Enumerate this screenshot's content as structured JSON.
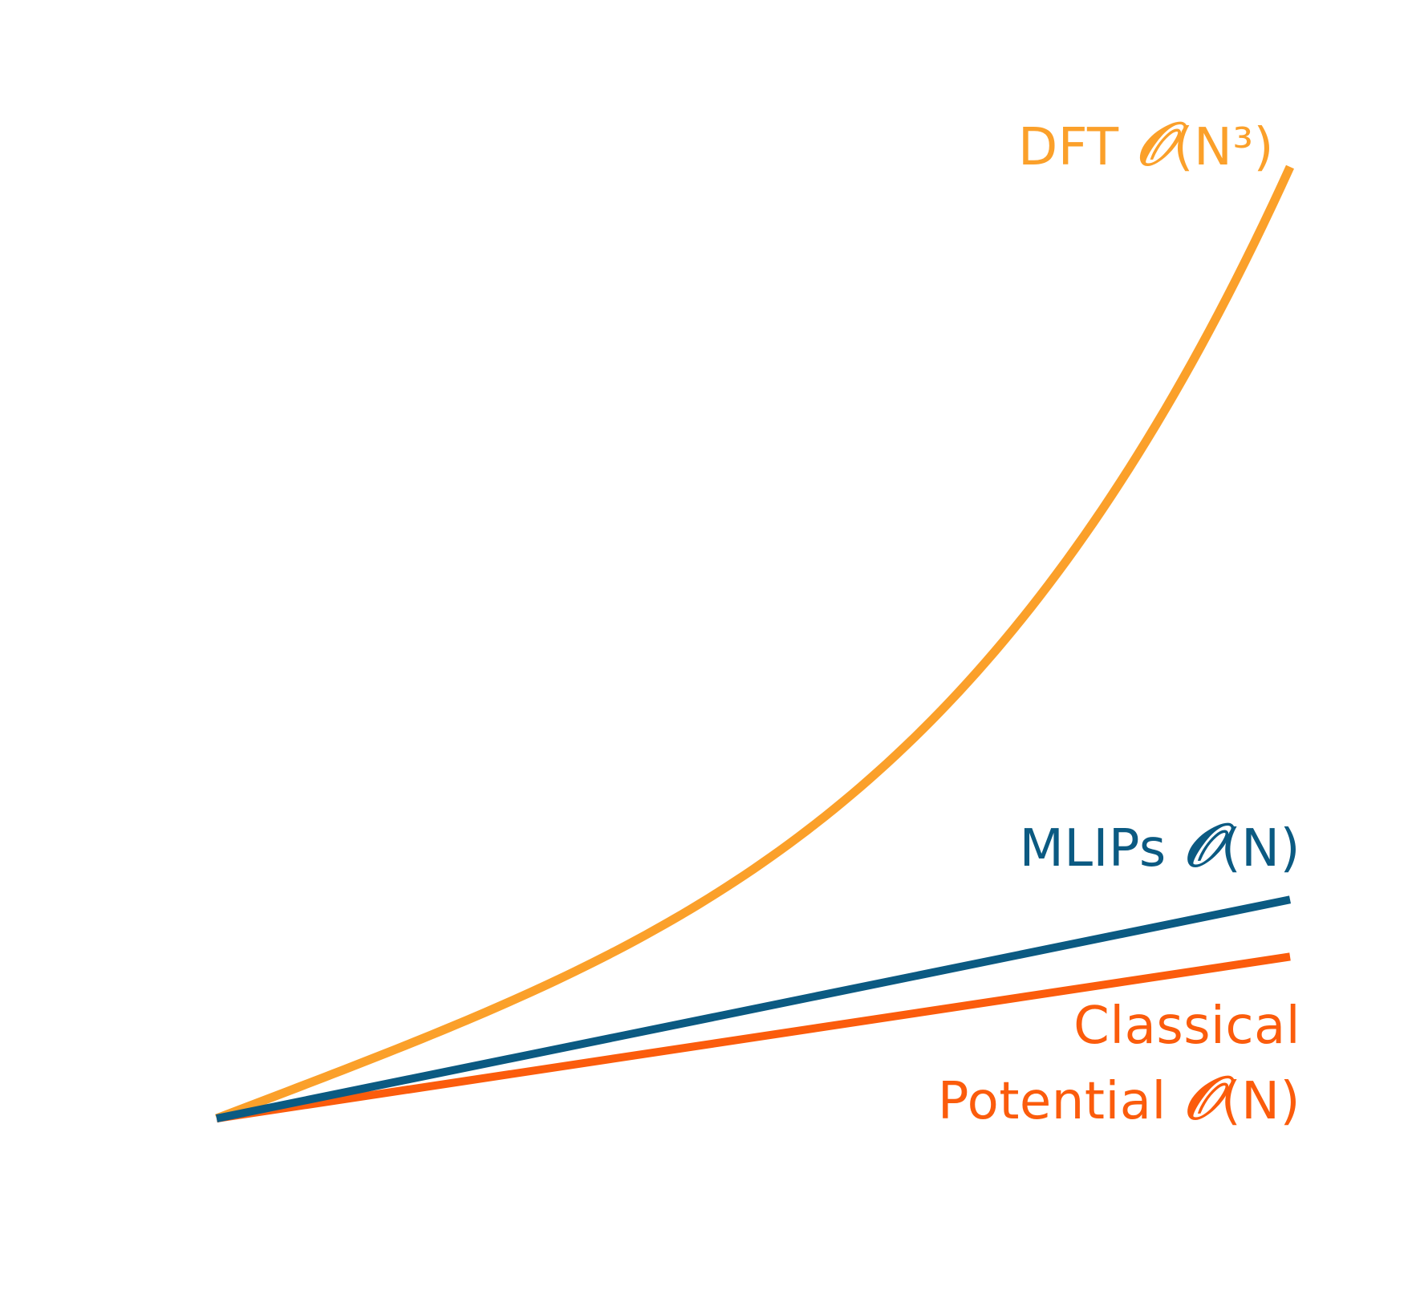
{
  "chart_data": {
    "type": "line",
    "title": "",
    "xlabel": "",
    "ylabel": "",
    "grid": false,
    "legend": "inline-labels-right",
    "xlim": [
      0,
      1
    ],
    "ylim": [
      0,
      1
    ],
    "series": [
      {
        "name": "DFT",
        "complexity": "(N³)",
        "big_o": "𝒪",
        "color": "#FBA02A",
        "law": "cubic",
        "x": [
          0,
          0.125,
          0.25,
          0.375,
          0.5,
          0.625,
          0.75,
          0.875,
          1
        ],
        "y": [
          0,
          0.06,
          0.13,
          0.21,
          0.31,
          0.42,
          0.56,
          0.75,
          1.0
        ]
      },
      {
        "name": "MLIPs",
        "complexity": "(N)",
        "big_o": "𝒪",
        "color": "#0B5A82",
        "law": "linear",
        "x": [
          0,
          1
        ],
        "y": [
          0,
          0.23
        ]
      },
      {
        "name": "Classical",
        "name_line2": "Potential",
        "complexity": "(N)",
        "big_o": "𝒪",
        "color": "#FB5C0C",
        "law": "linear",
        "x": [
          0,
          1
        ],
        "y": [
          0,
          0.17
        ]
      }
    ]
  }
}
